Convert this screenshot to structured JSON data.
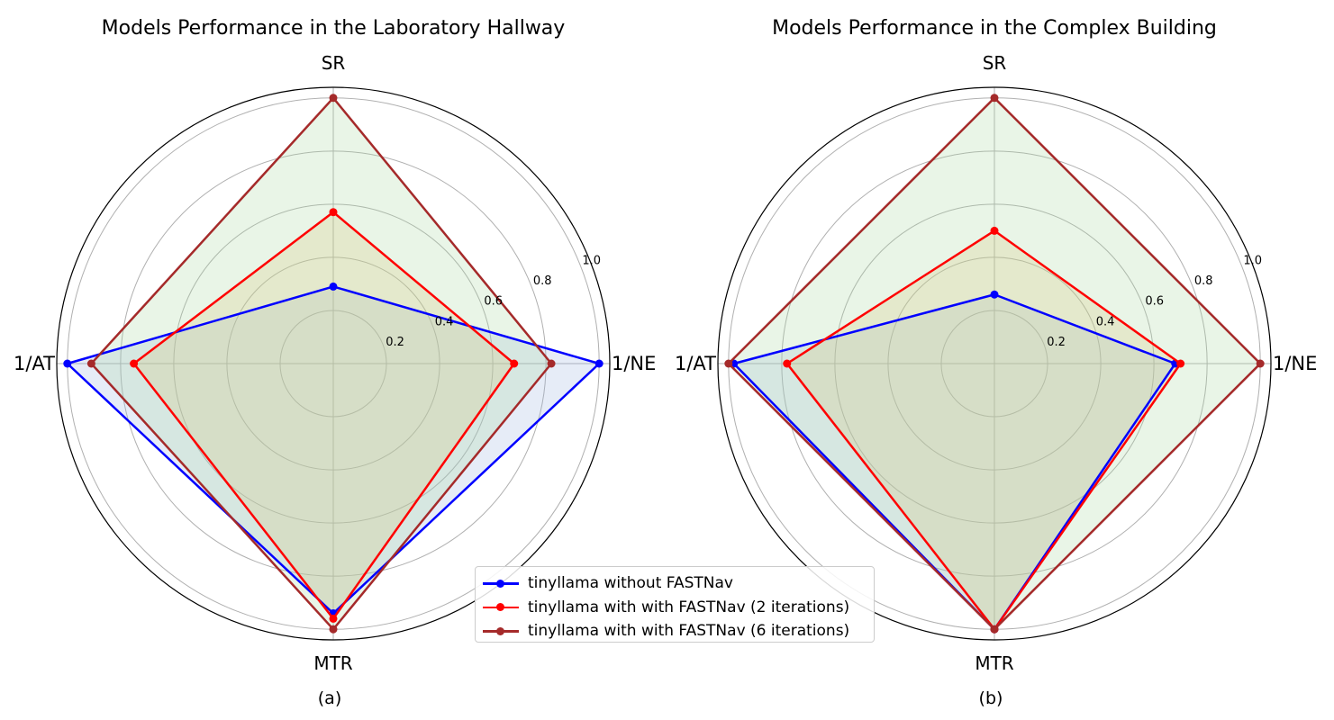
{
  "chart_data": [
    {
      "type": "radar",
      "title": "Models Performance in the Laboratory Hallway",
      "caption": "(a)",
      "axes": [
        "SR",
        "1/NE",
        "MTR",
        "1/AT"
      ],
      "rlim": [
        0,
        1.04
      ],
      "radial_ticks": [
        0.2,
        0.4,
        0.6,
        0.8,
        1.0
      ],
      "radial_tick_labels": [
        "0.2",
        "0.4",
        "0.6",
        "0.8",
        "1.0"
      ],
      "series": [
        {
          "name": "tinyllama without FASTNav",
          "color": "#0000ff",
          "fill": "#9db3e0",
          "values": [
            0.29,
            1.0,
            0.94,
            1.0
          ]
        },
        {
          "name": "tinyllama with with FASTNav (2 iterations)",
          "color": "#ff0000",
          "fill": "#e8c070",
          "values": [
            0.57,
            0.68,
            0.96,
            0.75
          ]
        },
        {
          "name": "tinyllama with with FASTNav (6 iterations)",
          "color": "#a52a2a",
          "fill": "#a8d8a0",
          "values": [
            1.0,
            0.82,
            1.0,
            0.91
          ]
        }
      ]
    },
    {
      "type": "radar",
      "title": "Models Performance in the Complex Building",
      "caption": "(b)",
      "axes": [
        "SR",
        "1/NE",
        "MTR",
        "1/AT"
      ],
      "rlim": [
        0,
        1.04
      ],
      "radial_ticks": [
        0.2,
        0.4,
        0.6,
        0.8,
        1.0
      ],
      "radial_tick_labels": [
        "0.2",
        "0.4",
        "0.6",
        "0.8",
        "1.0"
      ],
      "series": [
        {
          "name": "tinyllama without FASTNav",
          "color": "#0000ff",
          "fill": "#9db3e0",
          "values": [
            0.26,
            0.68,
            1.0,
            0.98
          ]
        },
        {
          "name": "tinyllama with with FASTNav (2 iterations)",
          "color": "#ff0000",
          "fill": "#e8c070",
          "values": [
            0.5,
            0.7,
            1.0,
            0.78
          ]
        },
        {
          "name": "tinyllama with with FASTNav (6 iterations)",
          "color": "#a52a2a",
          "fill": "#a8d8a0",
          "values": [
            1.0,
            1.0,
            1.0,
            1.0
          ]
        }
      ]
    }
  ],
  "legend": {
    "items": [
      {
        "label": "tinyllama without FASTNav",
        "color": "#0000ff"
      },
      {
        "label": "tinyllama with with FASTNav (2 iterations)",
        "color": "#ff0000"
      },
      {
        "label": "tinyllama with with FASTNav (6 iterations)",
        "color": "#a52a2a"
      }
    ]
  }
}
